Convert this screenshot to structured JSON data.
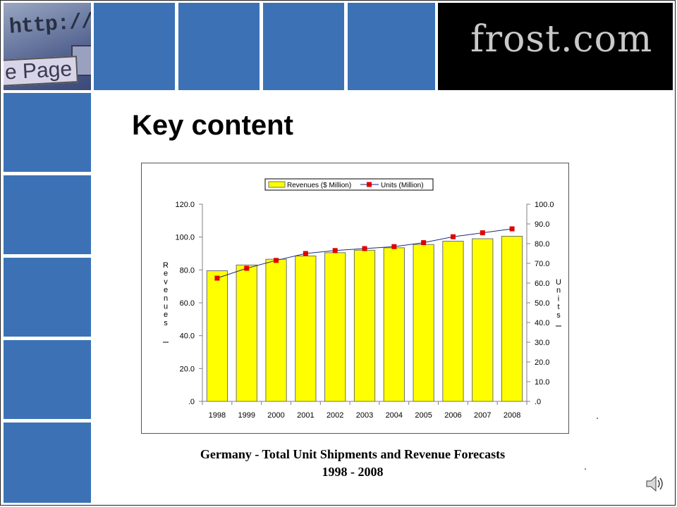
{
  "header": {
    "hero_url_text": "http://w",
    "hero_page_text": "e Page",
    "logo": "frost.com",
    "accent_color": "#3c72b5"
  },
  "slide": {
    "title": "Key content",
    "caption_line1": "Germany - Total Unit Shipments and Revenue Forecasts",
    "caption_line2": "1998 - 2008"
  },
  "chart_data": {
    "type": "bar",
    "categories": [
      "1998",
      "1999",
      "2000",
      "2001",
      "2002",
      "2003",
      "2004",
      "2005",
      "2006",
      "2007",
      "2008"
    ],
    "series": [
      {
        "name": "Revenues ($ Million)",
        "type": "bar",
        "axis": "left",
        "color": "#ffff00",
        "values": [
          79.5,
          83.0,
          86.5,
          88.5,
          90.5,
          92.0,
          93.5,
          95.5,
          97.5,
          99.0,
          100.5
        ]
      },
      {
        "name": "Units (Million)",
        "type": "line",
        "axis": "right",
        "color": "#e00000",
        "values": [
          62.5,
          67.5,
          71.5,
          75.0,
          76.5,
          77.5,
          78.5,
          80.5,
          83.5,
          85.5,
          87.5
        ]
      }
    ],
    "ylabel": "Revenues",
    "y2label": "Units",
    "ylim": [
      0,
      120
    ],
    "y2lim": [
      0,
      100
    ],
    "yticks": [
      ".0",
      "20.0",
      "40.0",
      "60.0",
      "80.0",
      "100.0",
      "120.0"
    ],
    "y2ticks": [
      ".0",
      "10.0",
      "20.0",
      "30.0",
      "40.0",
      "50.0",
      "60.0",
      "70.0",
      "80.0",
      "90.0",
      "100.0"
    ],
    "legend": "top-center"
  }
}
